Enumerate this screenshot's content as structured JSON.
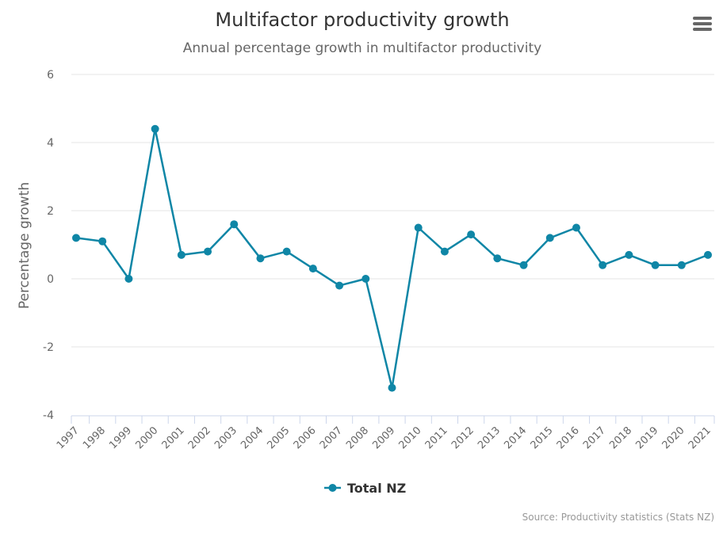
{
  "chart_data": {
    "type": "line",
    "title": "Multifactor productivity growth",
    "subtitle": "Annual percentage growth in multifactor productivity",
    "xlabel": "",
    "ylabel": "Percentage growth",
    "ylim": [
      -4,
      6
    ],
    "yticks": [
      "-4",
      "-2",
      "0",
      "2",
      "4",
      "6"
    ],
    "categories": [
      "1997",
      "1998",
      "1999",
      "2000",
      "2001",
      "2002",
      "2003",
      "2004",
      "2005",
      "2006",
      "2007",
      "2008",
      "2009",
      "2010",
      "2011",
      "2012",
      "2013",
      "2014",
      "2015",
      "2016",
      "2017",
      "2018",
      "2019",
      "2020",
      "2021"
    ],
    "series": [
      {
        "name": "Total NZ",
        "color": "#0f86a6",
        "values": [
          1.2,
          1.1,
          0.0,
          4.4,
          0.7,
          0.8,
          1.6,
          0.6,
          0.8,
          0.3,
          -0.2,
          0.0,
          -3.2,
          1.5,
          0.8,
          1.3,
          0.6,
          0.4,
          1.2,
          1.5,
          0.4,
          0.7,
          0.4,
          0.4,
          0.7
        ]
      }
    ],
    "grid": true,
    "legend": "bottom-center",
    "source": "Source: Productivity statistics (Stats NZ)"
  },
  "menu": {
    "icon": "hamburger-menu-icon"
  }
}
